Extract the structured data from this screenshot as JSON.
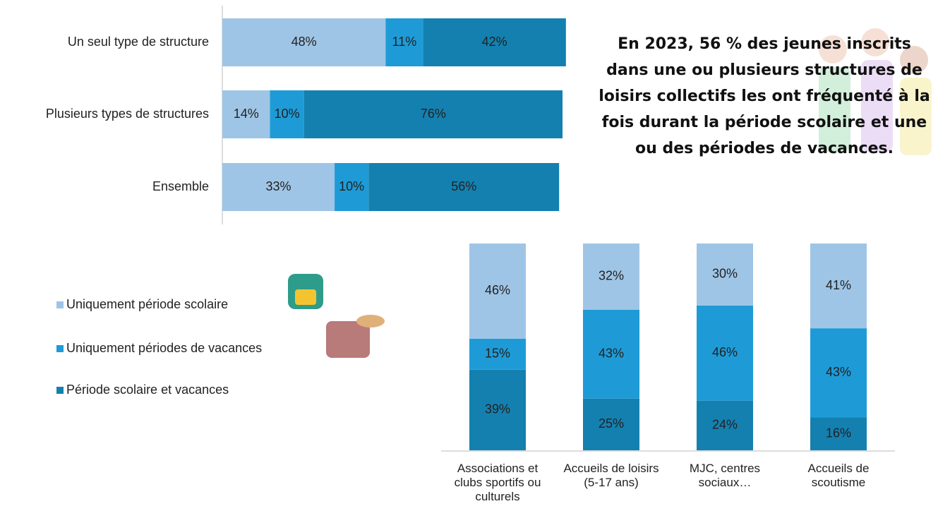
{
  "annotation": "En 2023, 56 % des jeunes inscrits dans une ou plusieurs structures de loisirs collectifs les ont fréquenté à la fois durant la période scolaire et une ou des périodes de vacances.",
  "chart_data": [
    {
      "type": "bar",
      "orientation": "horizontal",
      "stacked": true,
      "categories": [
        "Un seul type de structure",
        "Plusieurs types de structures",
        "Ensemble"
      ],
      "xlim": [
        0,
        100
      ],
      "series": [
        {
          "color": "#9fc5e6",
          "values": [
            48,
            14,
            33
          ],
          "value_labels": [
            "48%",
            "14%",
            "33%"
          ]
        },
        {
          "color": "#1e9bd7",
          "values": [
            11,
            10,
            10
          ],
          "value_labels": [
            "11%",
            "10%",
            "10%"
          ]
        },
        {
          "color": "#1480b0",
          "values": [
            42,
            76,
            56
          ],
          "value_labels": [
            "42%",
            "76%",
            "56%"
          ]
        }
      ]
    },
    {
      "type": "bar",
      "orientation": "vertical",
      "stacked": true,
      "categories": [
        "Associations et clubs sportifs ou culturels",
        "Accueils de loisirs (5-17 ans)",
        "MJC, centres sociaux…",
        "Accueils de scoutisme"
      ],
      "ylim": [
        0,
        100
      ],
      "series": [
        {
          "name": "Période scolaire et vacances",
          "color": "#1480b0",
          "values": [
            39,
            25,
            24,
            16
          ],
          "value_labels": [
            "39%",
            "25%",
            "24%",
            "16%"
          ]
        },
        {
          "name": "Uniquement périodes de vacances",
          "color": "#1e9bd7",
          "values": [
            15,
            43,
            46,
            43
          ],
          "value_labels": [
            "15%",
            "43%",
            "46%",
            "43%"
          ]
        },
        {
          "name": "Uniquement période scolaire",
          "color": "#9fc5e6",
          "values": [
            46,
            32,
            30,
            41
          ],
          "value_labels": [
            "46%",
            "32%",
            "30%",
            "41%"
          ]
        }
      ]
    }
  ]
}
